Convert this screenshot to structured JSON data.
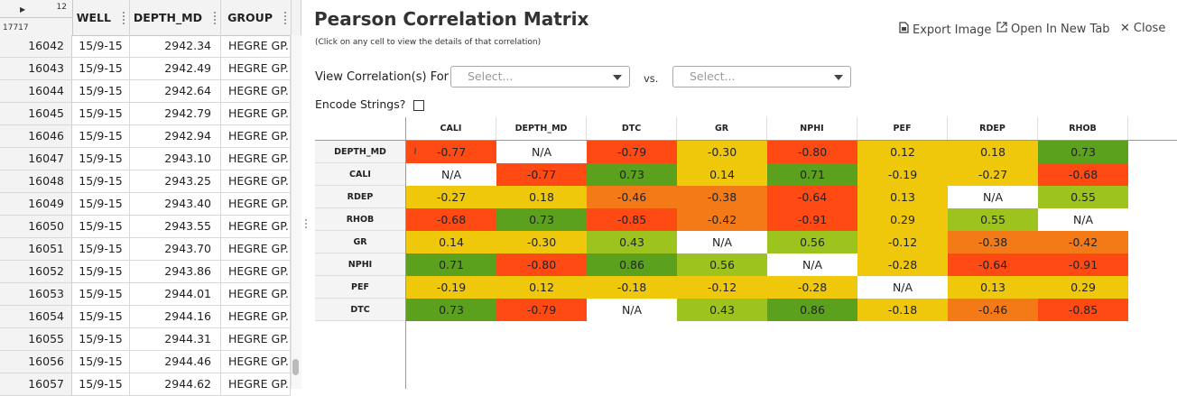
{
  "grid": {
    "corner": {
      "col_count": "12",
      "row_count": "17717"
    },
    "columns": [
      "WELL",
      "DEPTH_MD",
      "GROUP"
    ],
    "rows": [
      {
        "idx": "16042",
        "well": "15/9-15",
        "depth": "2942.34",
        "group": "HEGRE GP."
      },
      {
        "idx": "16043",
        "well": "15/9-15",
        "depth": "2942.49",
        "group": "HEGRE GP."
      },
      {
        "idx": "16044",
        "well": "15/9-15",
        "depth": "2942.64",
        "group": "HEGRE GP."
      },
      {
        "idx": "16045",
        "well": "15/9-15",
        "depth": "2942.79",
        "group": "HEGRE GP."
      },
      {
        "idx": "16046",
        "well": "15/9-15",
        "depth": "2942.94",
        "group": "HEGRE GP."
      },
      {
        "idx": "16047",
        "well": "15/9-15",
        "depth": "2943.10",
        "group": "HEGRE GP."
      },
      {
        "idx": "16048",
        "well": "15/9-15",
        "depth": "2943.25",
        "group": "HEGRE GP."
      },
      {
        "idx": "16049",
        "well": "15/9-15",
        "depth": "2943.40",
        "group": "HEGRE GP."
      },
      {
        "idx": "16050",
        "well": "15/9-15",
        "depth": "2943.55",
        "group": "HEGRE GP."
      },
      {
        "idx": "16051",
        "well": "15/9-15",
        "depth": "2943.70",
        "group": "HEGRE GP."
      },
      {
        "idx": "16052",
        "well": "15/9-15",
        "depth": "2943.86",
        "group": "HEGRE GP."
      },
      {
        "idx": "16053",
        "well": "15/9-15",
        "depth": "2944.01",
        "group": "HEGRE GP."
      },
      {
        "idx": "16054",
        "well": "15/9-15",
        "depth": "2944.16",
        "group": "HEGRE GP."
      },
      {
        "idx": "16055",
        "well": "15/9-15",
        "depth": "2944.31",
        "group": "HEGRE GP."
      },
      {
        "idx": "16056",
        "well": "15/9-15",
        "depth": "2944.46",
        "group": "HEGRE GP."
      },
      {
        "idx": "16057",
        "well": "15/9-15",
        "depth": "2944.62",
        "group": "HEGRE GP."
      }
    ]
  },
  "popup": {
    "title": "Pearson Correlation Matrix",
    "subtitle": "(Click on any cell to view the details of that correlation)",
    "export_label": "Export Image",
    "newtab_label": "Open In New Tab",
    "close_label": "Close",
    "view_label": "View Correlation(s) For",
    "select1_placeholder": "Select...",
    "vs_label": "vs.",
    "select2_placeholder": "Select...",
    "encode_label": "Encode Strings?"
  },
  "matrix": {
    "columns": [
      "CALI",
      "DEPTH_MD",
      "DTC",
      "GR",
      "NPHI",
      "PEF",
      "RDEP",
      "RHOB"
    ],
    "rows": [
      {
        "label": "DEPTH_MD",
        "values": [
          "-0.77",
          "N/A",
          "-0.79",
          "-0.30",
          "-0.80",
          "0.12",
          "0.18",
          "0.73"
        ]
      },
      {
        "label": "CALI",
        "values": [
          "N/A",
          "-0.77",
          "0.73",
          "0.14",
          "0.71",
          "-0.19",
          "-0.27",
          "-0.68"
        ]
      },
      {
        "label": "RDEP",
        "values": [
          "-0.27",
          "0.18",
          "-0.46",
          "-0.38",
          "-0.64",
          "0.13",
          "N/A",
          "0.55"
        ]
      },
      {
        "label": "RHOB",
        "values": [
          "-0.68",
          "0.73",
          "-0.85",
          "-0.42",
          "-0.91",
          "0.29",
          "0.55",
          "N/A"
        ]
      },
      {
        "label": "GR",
        "values": [
          "0.14",
          "-0.30",
          "0.43",
          "N/A",
          "0.56",
          "-0.12",
          "-0.38",
          "-0.42"
        ]
      },
      {
        "label": "NPHI",
        "values": [
          "0.71",
          "-0.80",
          "0.86",
          "0.56",
          "N/A",
          "-0.28",
          "-0.64",
          "-0.91"
        ]
      },
      {
        "label": "PEF",
        "values": [
          "-0.19",
          "0.12",
          "-0.18",
          "-0.12",
          "-0.28",
          "N/A",
          "0.13",
          "0.29"
        ]
      },
      {
        "label": "DTC",
        "values": [
          "0.73",
          "-0.79",
          "N/A",
          "0.43",
          "0.86",
          "-0.18",
          "-0.46",
          "-0.85"
        ]
      }
    ],
    "colors": {
      "strong_negative": "#ff4a14",
      "medium_negative": "#f47a18",
      "weak": "#efc80c",
      "medium_positive": "#9dc31e",
      "strong_positive": "#5ca11e",
      "na": "#ffffff"
    },
    "sparkline_icon": "sparkline-icon"
  }
}
